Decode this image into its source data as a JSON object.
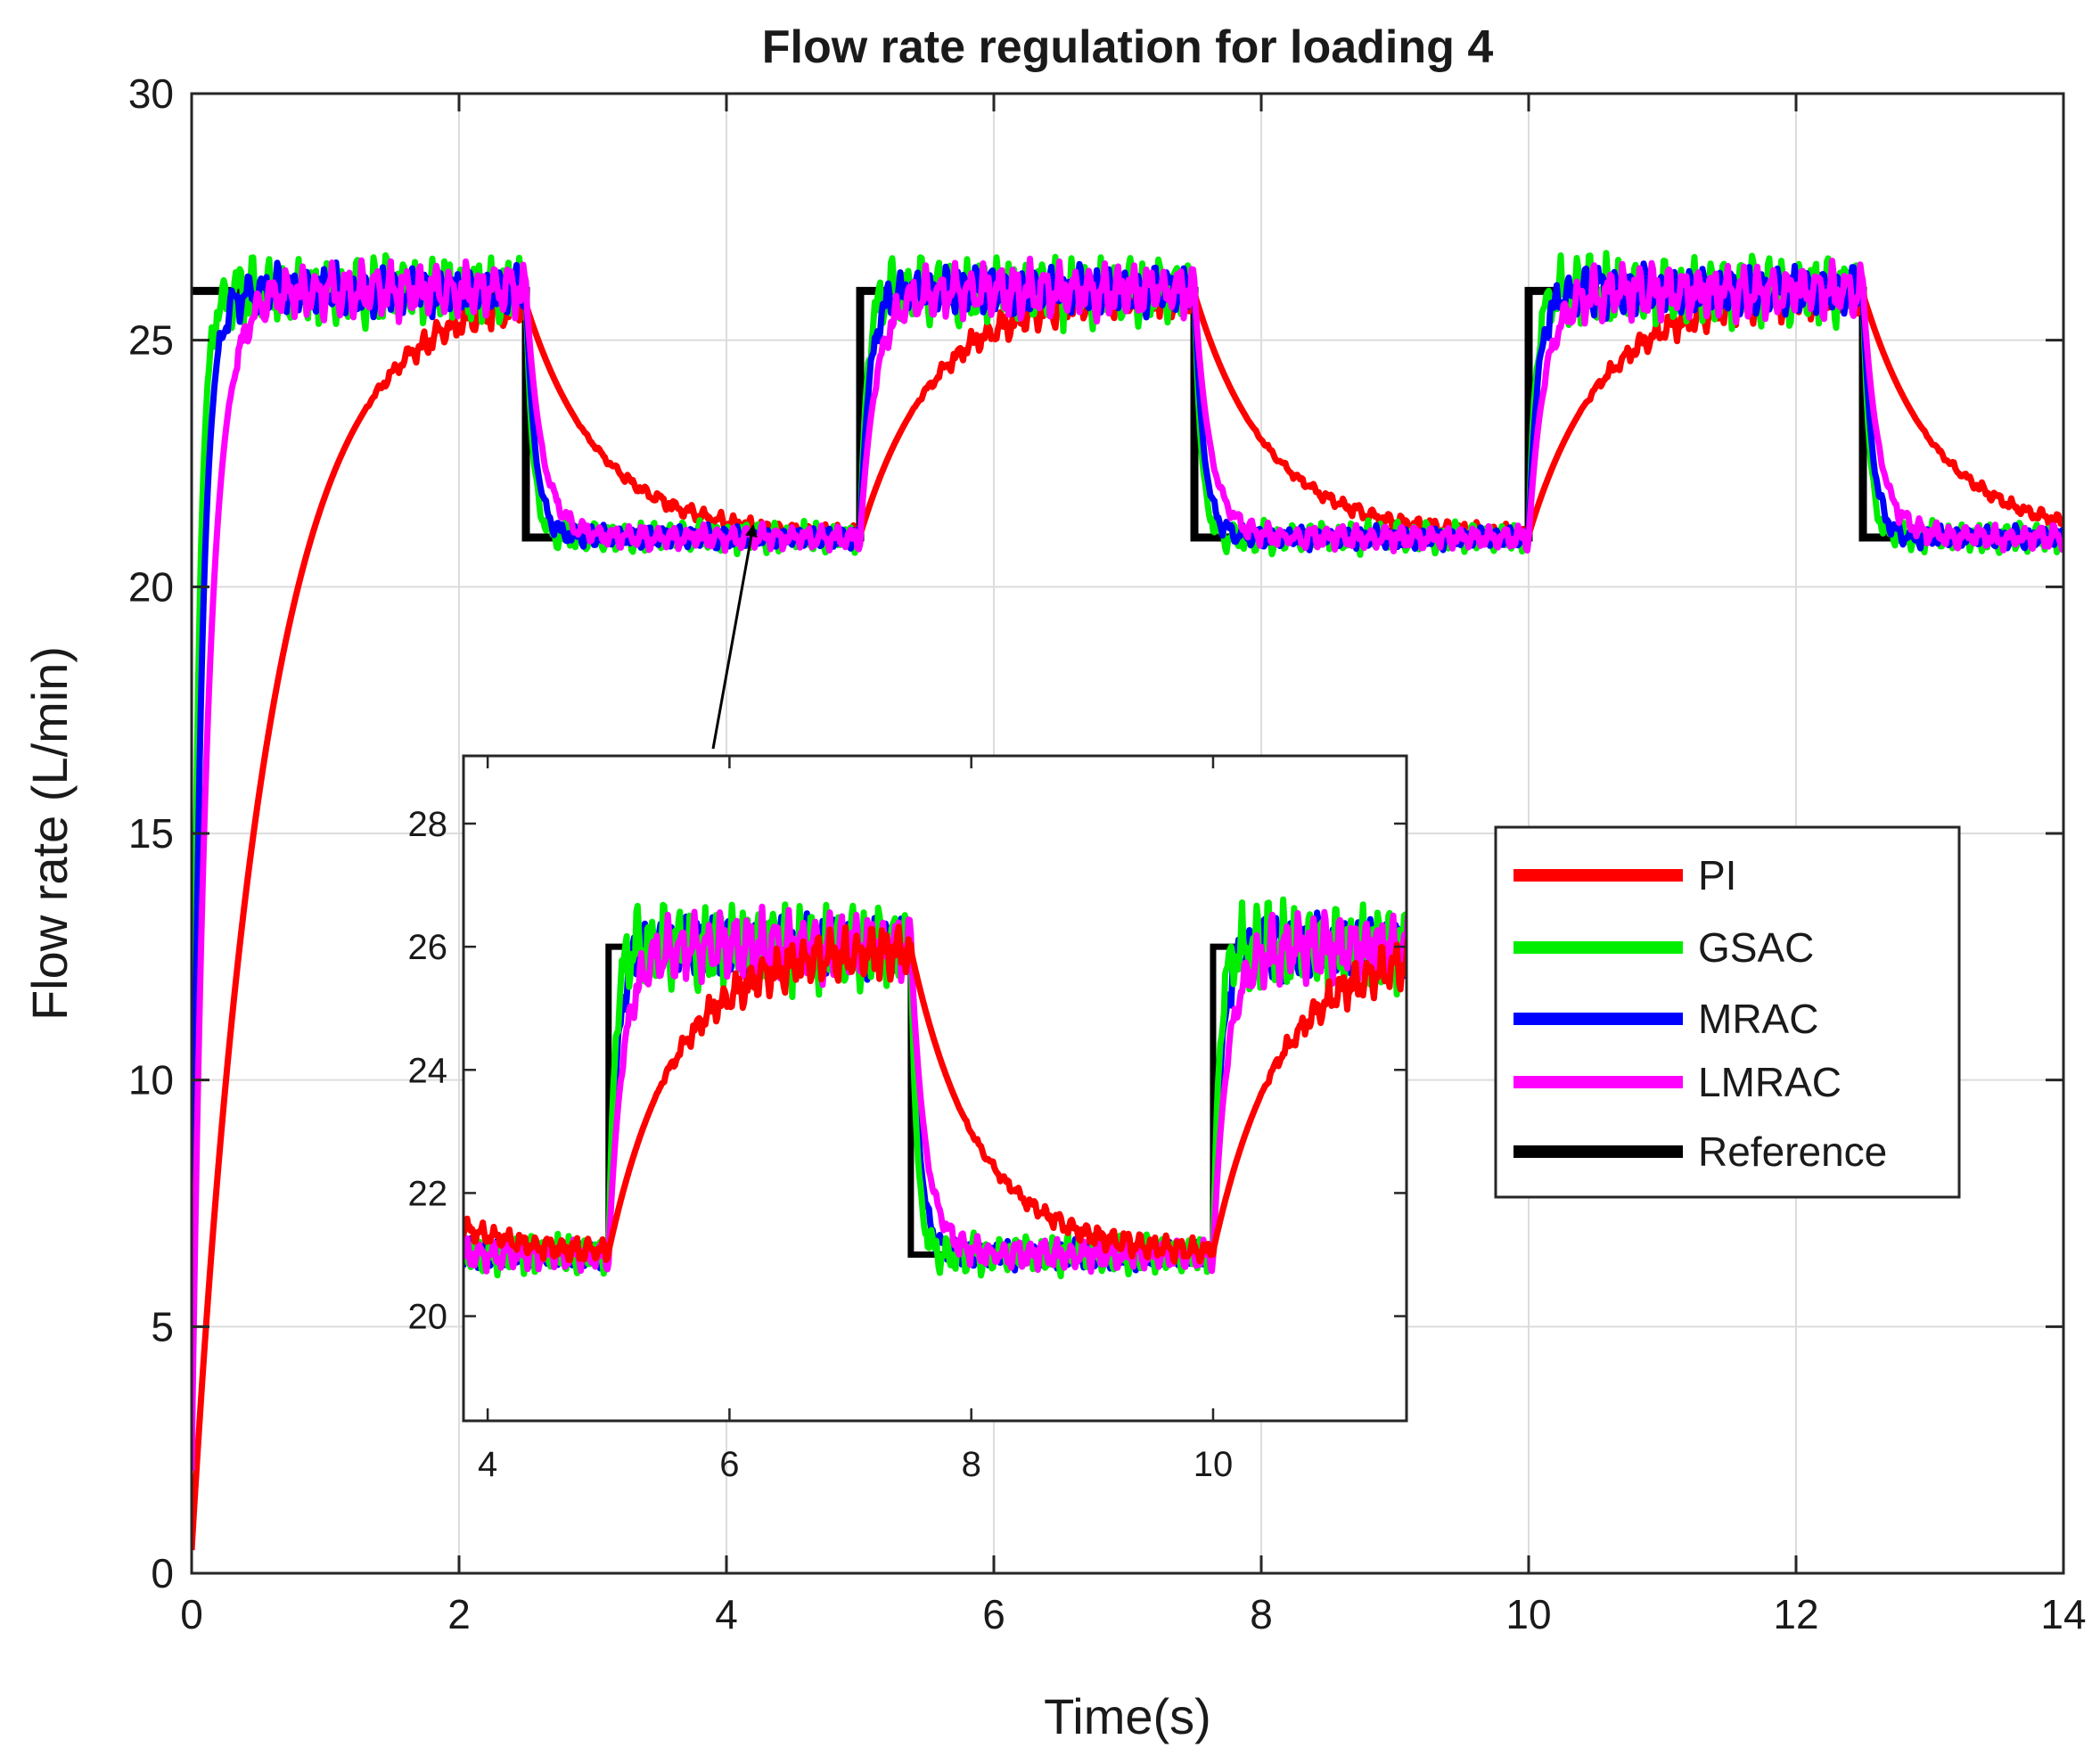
{
  "chart_data": {
    "type": "line",
    "title": "Flow rate regulation for loading 4",
    "xlabel": "Time(s)",
    "ylabel": "Flow rate (L/min)",
    "xlim": [
      0,
      14
    ],
    "ylim": [
      0,
      30
    ],
    "xticks": [
      0,
      2,
      4,
      6,
      8,
      10,
      12,
      14
    ],
    "yticks": [
      0,
      5,
      10,
      15,
      20,
      25,
      30
    ],
    "grid": true,
    "legend_position": "right-middle",
    "series": [
      {
        "name": "PI",
        "color": "#ff0000",
        "style": "slow_first_order",
        "tau": 0.55,
        "ripple": 0.45
      },
      {
        "name": "GSAC",
        "color": "#00ee00",
        "style": "fast_oscillatory",
        "tau": 0.05,
        "ripple": 0.7
      },
      {
        "name": "MRAC",
        "color": "#0000ff",
        "style": "fast",
        "tau": 0.07,
        "ripple": 0.5
      },
      {
        "name": "LMRAC",
        "color": "#ff00ff",
        "style": "moderate",
        "tau": 0.12,
        "ripple": 0.55
      },
      {
        "name": "Reference",
        "color": "#000000",
        "style": "square_wave"
      }
    ],
    "reference": {
      "high": 26,
      "low": 21,
      "segments": [
        [
          0,
          2.5,
          26
        ],
        [
          2.5,
          5,
          21
        ],
        [
          5,
          7.5,
          26
        ],
        [
          7.5,
          10,
          21
        ],
        [
          10,
          12.5,
          26
        ],
        [
          12.5,
          14,
          21
        ]
      ]
    },
    "inset": {
      "xlim": [
        3.8,
        11.6
      ],
      "ylim": [
        18.3,
        29.1
      ],
      "xticks": [
        4,
        6,
        8,
        10
      ],
      "yticks": [
        20,
        22,
        24,
        26,
        28
      ],
      "annotation": "arrow from inset to the t≈4.2 s settling region of the main plot"
    }
  }
}
